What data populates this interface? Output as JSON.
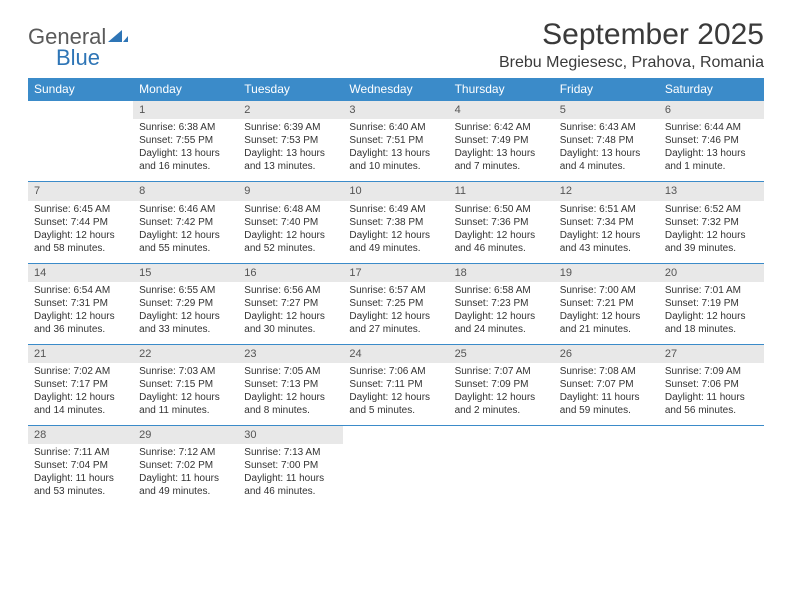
{
  "logo": {
    "general": "General",
    "blue": "Blue"
  },
  "title": "September 2025",
  "location": "Brebu Megiesesc, Prahova, Romania",
  "colors": {
    "header_bg": "#3b8bc9",
    "header_text": "#ffffff",
    "daynum_bg": "#e8e8e8",
    "border": "#3b8bc9",
    "text": "#333333",
    "logo_gray": "#5a5a5a",
    "logo_blue": "#2e75b6"
  },
  "weekdays": [
    "Sunday",
    "Monday",
    "Tuesday",
    "Wednesday",
    "Thursday",
    "Friday",
    "Saturday"
  ],
  "weeks": [
    {
      "nums": [
        "",
        "1",
        "2",
        "3",
        "4",
        "5",
        "6"
      ],
      "cells": [
        null,
        {
          "sunrise": "Sunrise: 6:38 AM",
          "sunset": "Sunset: 7:55 PM",
          "daylight": "Daylight: 13 hours and 16 minutes."
        },
        {
          "sunrise": "Sunrise: 6:39 AM",
          "sunset": "Sunset: 7:53 PM",
          "daylight": "Daylight: 13 hours and 13 minutes."
        },
        {
          "sunrise": "Sunrise: 6:40 AM",
          "sunset": "Sunset: 7:51 PM",
          "daylight": "Daylight: 13 hours and 10 minutes."
        },
        {
          "sunrise": "Sunrise: 6:42 AM",
          "sunset": "Sunset: 7:49 PM",
          "daylight": "Daylight: 13 hours and 7 minutes."
        },
        {
          "sunrise": "Sunrise: 6:43 AM",
          "sunset": "Sunset: 7:48 PM",
          "daylight": "Daylight: 13 hours and 4 minutes."
        },
        {
          "sunrise": "Sunrise: 6:44 AM",
          "sunset": "Sunset: 7:46 PM",
          "daylight": "Daylight: 13 hours and 1 minute."
        }
      ]
    },
    {
      "nums": [
        "7",
        "8",
        "9",
        "10",
        "11",
        "12",
        "13"
      ],
      "cells": [
        {
          "sunrise": "Sunrise: 6:45 AM",
          "sunset": "Sunset: 7:44 PM",
          "daylight": "Daylight: 12 hours and 58 minutes."
        },
        {
          "sunrise": "Sunrise: 6:46 AM",
          "sunset": "Sunset: 7:42 PM",
          "daylight": "Daylight: 12 hours and 55 minutes."
        },
        {
          "sunrise": "Sunrise: 6:48 AM",
          "sunset": "Sunset: 7:40 PM",
          "daylight": "Daylight: 12 hours and 52 minutes."
        },
        {
          "sunrise": "Sunrise: 6:49 AM",
          "sunset": "Sunset: 7:38 PM",
          "daylight": "Daylight: 12 hours and 49 minutes."
        },
        {
          "sunrise": "Sunrise: 6:50 AM",
          "sunset": "Sunset: 7:36 PM",
          "daylight": "Daylight: 12 hours and 46 minutes."
        },
        {
          "sunrise": "Sunrise: 6:51 AM",
          "sunset": "Sunset: 7:34 PM",
          "daylight": "Daylight: 12 hours and 43 minutes."
        },
        {
          "sunrise": "Sunrise: 6:52 AM",
          "sunset": "Sunset: 7:32 PM",
          "daylight": "Daylight: 12 hours and 39 minutes."
        }
      ]
    },
    {
      "nums": [
        "14",
        "15",
        "16",
        "17",
        "18",
        "19",
        "20"
      ],
      "cells": [
        {
          "sunrise": "Sunrise: 6:54 AM",
          "sunset": "Sunset: 7:31 PM",
          "daylight": "Daylight: 12 hours and 36 minutes."
        },
        {
          "sunrise": "Sunrise: 6:55 AM",
          "sunset": "Sunset: 7:29 PM",
          "daylight": "Daylight: 12 hours and 33 minutes."
        },
        {
          "sunrise": "Sunrise: 6:56 AM",
          "sunset": "Sunset: 7:27 PM",
          "daylight": "Daylight: 12 hours and 30 minutes."
        },
        {
          "sunrise": "Sunrise: 6:57 AM",
          "sunset": "Sunset: 7:25 PM",
          "daylight": "Daylight: 12 hours and 27 minutes."
        },
        {
          "sunrise": "Sunrise: 6:58 AM",
          "sunset": "Sunset: 7:23 PM",
          "daylight": "Daylight: 12 hours and 24 minutes."
        },
        {
          "sunrise": "Sunrise: 7:00 AM",
          "sunset": "Sunset: 7:21 PM",
          "daylight": "Daylight: 12 hours and 21 minutes."
        },
        {
          "sunrise": "Sunrise: 7:01 AM",
          "sunset": "Sunset: 7:19 PM",
          "daylight": "Daylight: 12 hours and 18 minutes."
        }
      ]
    },
    {
      "nums": [
        "21",
        "22",
        "23",
        "24",
        "25",
        "26",
        "27"
      ],
      "cells": [
        {
          "sunrise": "Sunrise: 7:02 AM",
          "sunset": "Sunset: 7:17 PM",
          "daylight": "Daylight: 12 hours and 14 minutes."
        },
        {
          "sunrise": "Sunrise: 7:03 AM",
          "sunset": "Sunset: 7:15 PM",
          "daylight": "Daylight: 12 hours and 11 minutes."
        },
        {
          "sunrise": "Sunrise: 7:05 AM",
          "sunset": "Sunset: 7:13 PM",
          "daylight": "Daylight: 12 hours and 8 minutes."
        },
        {
          "sunrise": "Sunrise: 7:06 AM",
          "sunset": "Sunset: 7:11 PM",
          "daylight": "Daylight: 12 hours and 5 minutes."
        },
        {
          "sunrise": "Sunrise: 7:07 AM",
          "sunset": "Sunset: 7:09 PM",
          "daylight": "Daylight: 12 hours and 2 minutes."
        },
        {
          "sunrise": "Sunrise: 7:08 AM",
          "sunset": "Sunset: 7:07 PM",
          "daylight": "Daylight: 11 hours and 59 minutes."
        },
        {
          "sunrise": "Sunrise: 7:09 AM",
          "sunset": "Sunset: 7:06 PM",
          "daylight": "Daylight: 11 hours and 56 minutes."
        }
      ]
    },
    {
      "nums": [
        "28",
        "29",
        "30",
        "",
        "",
        "",
        ""
      ],
      "cells": [
        {
          "sunrise": "Sunrise: 7:11 AM",
          "sunset": "Sunset: 7:04 PM",
          "daylight": "Daylight: 11 hours and 53 minutes."
        },
        {
          "sunrise": "Sunrise: 7:12 AM",
          "sunset": "Sunset: 7:02 PM",
          "daylight": "Daylight: 11 hours and 49 minutes."
        },
        {
          "sunrise": "Sunrise: 7:13 AM",
          "sunset": "Sunset: 7:00 PM",
          "daylight": "Daylight: 11 hours and 46 minutes."
        },
        null,
        null,
        null,
        null
      ]
    }
  ]
}
